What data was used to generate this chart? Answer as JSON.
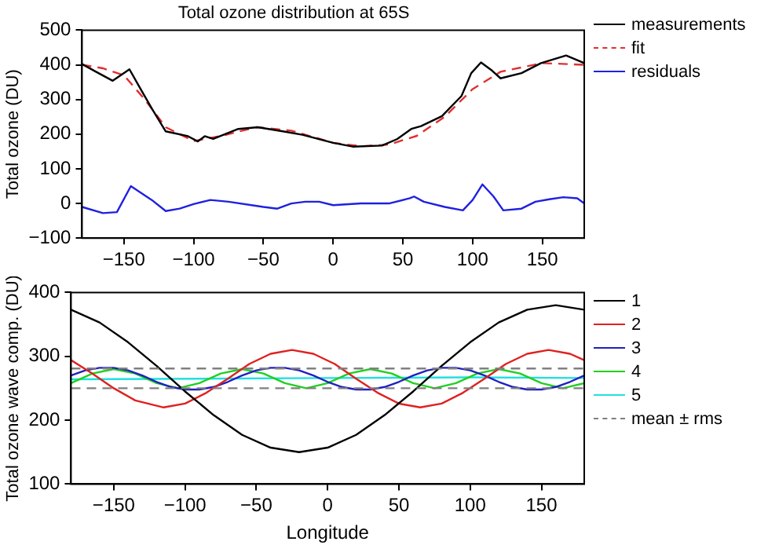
{
  "chart_data": [
    {
      "type": "line",
      "title": "Total ozone distribution at 65S",
      "ylabel": "Total ozone (DU)",
      "xlim": [
        -180,
        180
      ],
      "ylim": [
        -100,
        500
      ],
      "xticks": [
        -150,
        -100,
        -50,
        0,
        50,
        100,
        150
      ],
      "yticks": [
        -100,
        0,
        100,
        200,
        300,
        400,
        500
      ],
      "legend": "right",
      "grid": false,
      "series": [
        {
          "name": "measurements",
          "color": "#000000",
          "x": [
            -180,
            -170,
            -158,
            -146,
            -138,
            -130,
            -120,
            -104,
            -97,
            -92,
            -86,
            -68,
            -54,
            -36,
            -22,
            0,
            14,
            35,
            46,
            56,
            63,
            78,
            92,
            99,
            106,
            114,
            120,
            135,
            149,
            167,
            180
          ],
          "values": [
            402,
            380,
            354,
            387,
            330,
            274,
            208,
            194,
            179,
            194,
            186,
            215,
            220,
            208,
            198,
            175,
            164,
            167,
            186,
            215,
            223,
            252,
            310,
            376,
            407,
            383,
            361,
            376,
            405,
            427,
            405
          ]
        },
        {
          "name": "fit",
          "color": "#e03030",
          "line_style": "dashed",
          "x": [
            -180,
            -165,
            -150,
            -135,
            -120,
            -100,
            -80,
            -55,
            -30,
            0,
            20,
            40,
            60,
            80,
            100,
            120,
            150,
            180
          ],
          "values": [
            400,
            390,
            370,
            300,
            220,
            180,
            195,
            220,
            210,
            175,
            165,
            170,
            195,
            250,
            330,
            380,
            405,
            400
          ]
        },
        {
          "name": "residuals",
          "color": "#2020e0",
          "x": [
            -180,
            -165,
            -155,
            -145,
            -130,
            -120,
            -110,
            -100,
            -88,
            -75,
            -50,
            -40,
            -30,
            -20,
            -10,
            0,
            20,
            40,
            55,
            58,
            65,
            80,
            93,
            100,
            107,
            115,
            122,
            135,
            145,
            155,
            165,
            175,
            180
          ],
          "values": [
            -10,
            -28,
            -25,
            50,
            10,
            -22,
            -15,
            -2,
            10,
            5,
            -10,
            -15,
            0,
            5,
            5,
            -5,
            0,
            0,
            15,
            20,
            5,
            -10,
            -20,
            10,
            55,
            20,
            -20,
            -15,
            5,
            12,
            18,
            15,
            0
          ]
        }
      ]
    },
    {
      "type": "line",
      "xlabel": "Longitude",
      "ylabel": "Total ozone wave comp. (DU)",
      "xlim": [
        -180,
        180
      ],
      "ylim": [
        100,
        400
      ],
      "xticks": [
        -150,
        -100,
        -50,
        0,
        50,
        100,
        150
      ],
      "yticks": [
        100,
        200,
        300,
        400
      ],
      "legend": "right",
      "grid": false,
      "ref_lines": [
        {
          "axis": "y",
          "value": 281,
          "label": "mean ± rms",
          "color": "#808080",
          "line_style": "dashed"
        },
        {
          "axis": "y",
          "value": 250,
          "color": "#808080",
          "line_style": "dashed"
        }
      ],
      "series": [
        {
          "name": "1",
          "color": "#000000",
          "x": [
            -180,
            -160,
            -140,
            -120,
            -100,
            -80,
            -60,
            -40,
            -20,
            0,
            20,
            40,
            60,
            80,
            100,
            120,
            140,
            160,
            180
          ],
          "values": [
            373,
            353,
            322,
            285,
            245,
            208,
            177,
            157,
            150,
            157,
            177,
            208,
            245,
            285,
            322,
            353,
            373,
            380,
            373
          ]
        },
        {
          "name": "2",
          "color": "#e02020",
          "x": [
            -180,
            -165,
            -150,
            -135,
            -115,
            -100,
            -85,
            -70,
            -55,
            -40,
            -25,
            -10,
            5,
            20,
            35,
            50,
            65,
            80,
            95,
            110,
            125,
            140,
            155,
            170,
            180
          ],
          "values": [
            294,
            273,
            250,
            231,
            220,
            226,
            243,
            265,
            288,
            304,
            310,
            304,
            288,
            265,
            243,
            226,
            220,
            226,
            243,
            265,
            288,
            304,
            310,
            304,
            294
          ]
        },
        {
          "name": "3",
          "color": "#2020c0",
          "x": [
            -180,
            -170,
            -160,
            -150,
            -140,
            -130,
            -120,
            -110,
            -100,
            -90,
            -80,
            -70,
            -60,
            -50,
            -40,
            -30,
            -20,
            -10,
            0,
            10,
            20,
            30,
            40,
            50,
            60,
            70,
            80,
            90,
            100,
            110,
            120,
            130,
            140,
            150,
            160,
            170,
            180
          ],
          "values": [
            270,
            278,
            282,
            282,
            278,
            270,
            260,
            252,
            248,
            248,
            252,
            260,
            270,
            278,
            282,
            282,
            278,
            270,
            260,
            252,
            248,
            248,
            252,
            260,
            270,
            278,
            282,
            282,
            278,
            270,
            260,
            252,
            248,
            248,
            252,
            260,
            270
          ]
        },
        {
          "name": "4",
          "color": "#20d020",
          "x": [
            -180,
            -165,
            -150,
            -135,
            -120,
            -105,
            -90,
            -75,
            -60,
            -45,
            -30,
            -15,
            0,
            15,
            30,
            45,
            60,
            75,
            90,
            105,
            120,
            135,
            150,
            165,
            180
          ],
          "values": [
            258,
            273,
            280,
            273,
            258,
            250,
            258,
            273,
            280,
            273,
            258,
            250,
            258,
            273,
            280,
            273,
            258,
            250,
            258,
            273,
            280,
            273,
            258,
            250,
            258
          ]
        },
        {
          "name": "5",
          "color": "#20e0e0",
          "x": [
            -180,
            -90,
            0,
            100,
            180
          ],
          "values": [
            264,
            265,
            266,
            267,
            266
          ]
        }
      ]
    }
  ]
}
